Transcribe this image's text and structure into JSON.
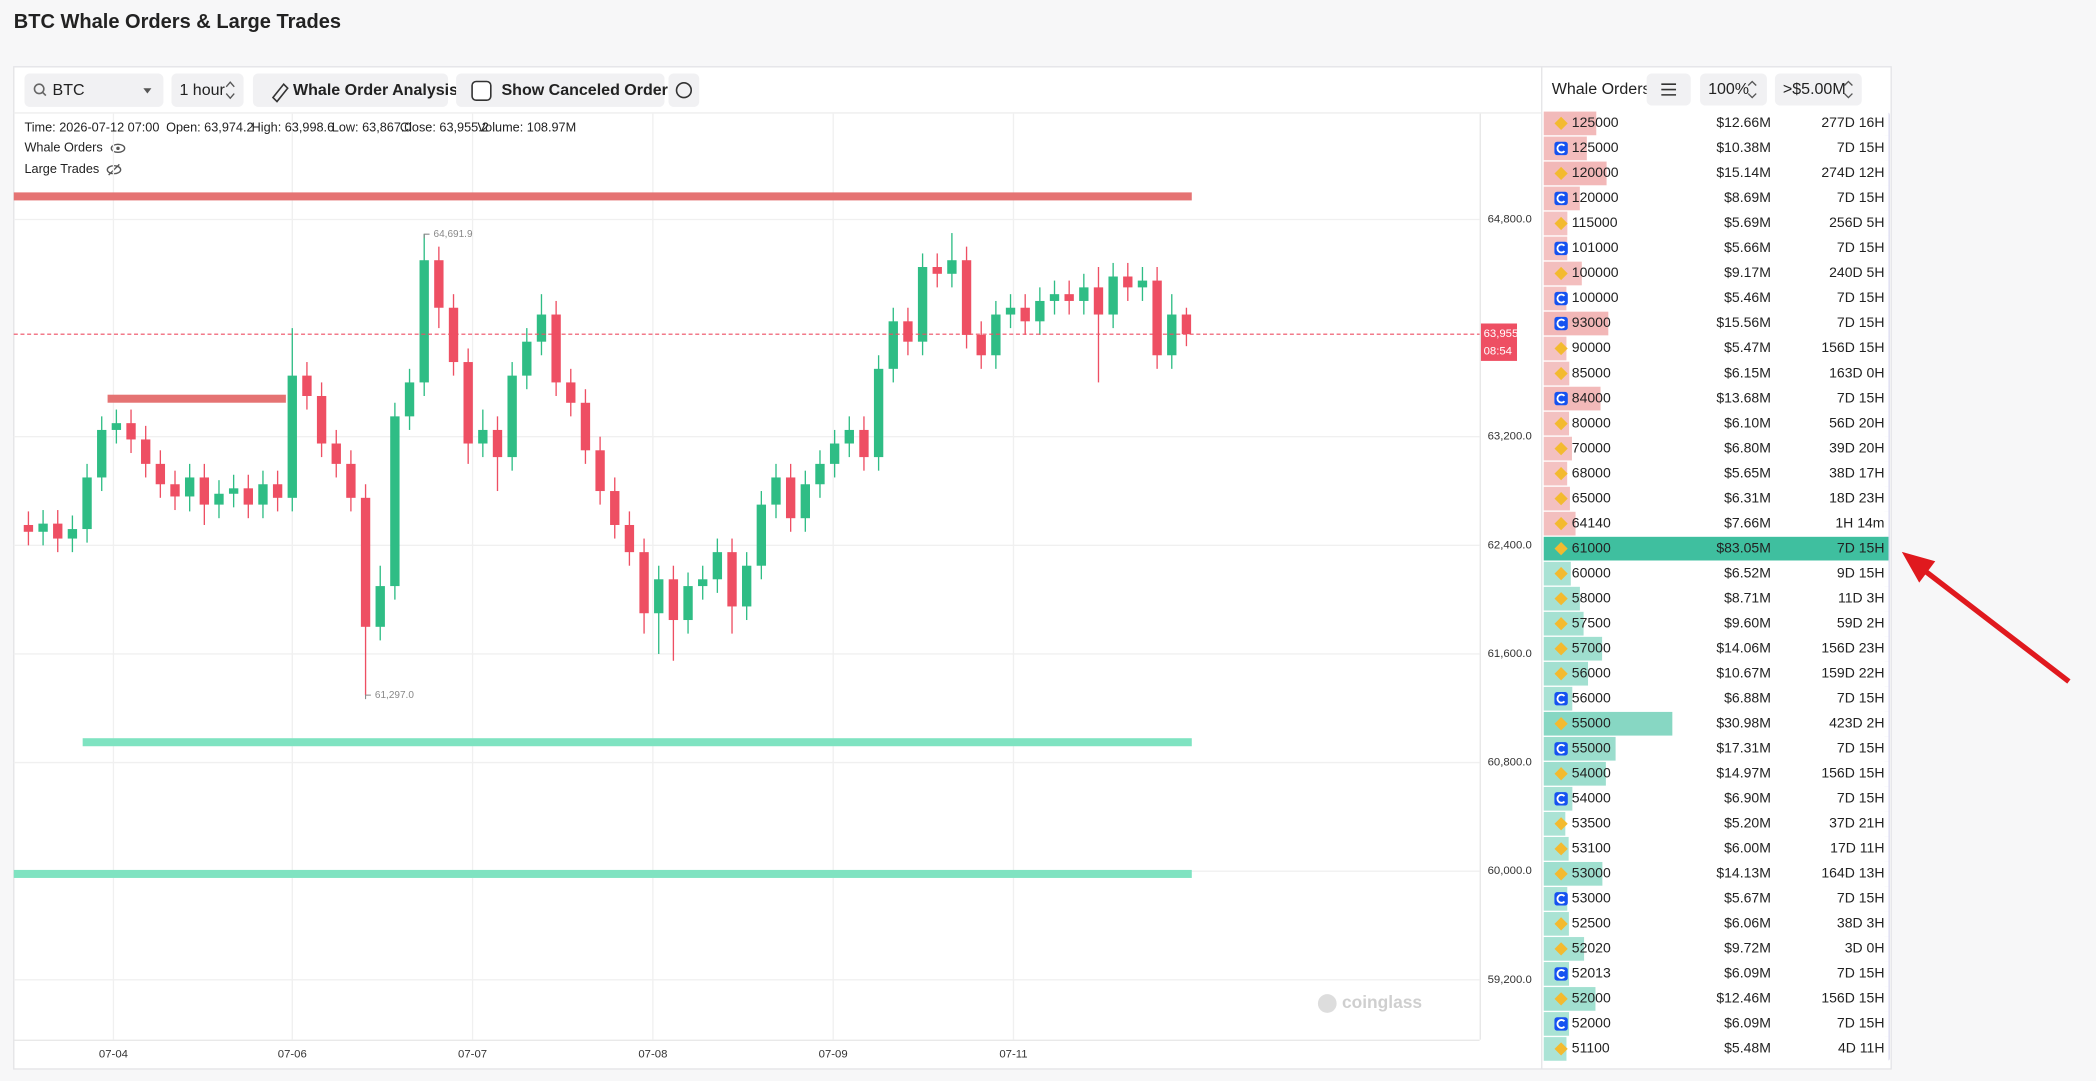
{
  "title": "BTC Whale Orders & Large Trades",
  "toolbar": {
    "symbol": "BTC",
    "interval": "1 hour",
    "analysis_button": "Whale Order Analysis",
    "canceled_toggle": "Show Canceled Orders"
  },
  "chart_data": {
    "type": "candlestick",
    "info": [
      "Time: 2026-07-12 07:00",
      "Open: 63,974.2",
      "High: 63,998.6",
      "Low: 63,867.0",
      "Close: 63,955.2",
      "Volume: 108.97M"
    ],
    "legend": [
      "Whale Orders",
      "Large Trades"
    ],
    "up_color": "#2fbd85",
    "down_color": "#ee4f63",
    "xlim": [
      -1,
      99
    ],
    "xticks": [
      {
        "value": 5.8,
        "label": "07-04"
      },
      {
        "value": 18,
        "label": "07-06"
      },
      {
        "value": 30.3,
        "label": "07-07"
      },
      {
        "value": 42.6,
        "label": "07-08"
      },
      {
        "value": 54.9,
        "label": "07-09"
      },
      {
        "value": 67.2,
        "label": "07-11"
      }
    ],
    "ylim": [
      58760,
      65580
    ],
    "yticks": [
      {
        "value": 64800,
        "label": "64,800.0"
      },
      {
        "value": 63200,
        "label": "63,200.0"
      },
      {
        "value": 62400,
        "label": "62,400.0"
      },
      {
        "value": 61600,
        "label": "61,600.0"
      },
      {
        "value": 60800,
        "label": "60,800.0"
      },
      {
        "value": 60000,
        "label": "60,000.0"
      },
      {
        "value": 59200,
        "label": "59,200.0"
      }
    ],
    "grid": true,
    "open": [
      62550,
      62500,
      62560,
      62450,
      62520,
      62900,
      63250,
      63300,
      63180,
      63000,
      62850,
      62760,
      62900,
      62700,
      62780,
      62820,
      62700,
      62850,
      62750,
      63650,
      63500,
      63150,
      63000,
      62750,
      61800,
      62100,
      63350,
      63600,
      64500,
      64150,
      63750,
      63150,
      63250,
      63050,
      63650,
      63900,
      64100,
      63600,
      63450,
      63100,
      62800,
      62550,
      62350,
      61900,
      62150,
      61850,
      62100,
      62150,
      62350,
      61950,
      62250,
      62700,
      62900,
      62600,
      62850,
      63000,
      63150,
      63250,
      63050,
      63700,
      64050,
      63900,
      64450,
      64400,
      64500,
      63950,
      63800,
      64100,
      64150,
      64050,
      64200,
      64250,
      64200,
      64300,
      64100,
      64380,
      64300,
      64350,
      63800,
      64100
    ],
    "high": [
      62650,
      62660,
      62660,
      62620,
      63000,
      63350,
      63400,
      63400,
      63280,
      63100,
      62950,
      63000,
      63000,
      62880,
      62920,
      62920,
      62950,
      62950,
      64000,
      63750,
      63600,
      63250,
      63100,
      62850,
      62250,
      63450,
      63700,
      64691.9,
      64600,
      64250,
      63850,
      63400,
      63350,
      63750,
      64000,
      64250,
      64200,
      63700,
      63550,
      63200,
      62900,
      62650,
      62450,
      62250,
      62250,
      62200,
      62250,
      62450,
      62450,
      62350,
      62800,
      63000,
      63000,
      62950,
      63100,
      63250,
      63350,
      63350,
      63800,
      64150,
      64150,
      64550,
      64550,
      64700,
      64600,
      64050,
      64200,
      64250,
      64250,
      64300,
      64350,
      64350,
      64400,
      64450,
      64480,
      64480,
      64450,
      64450,
      64250,
      64150
    ],
    "low": [
      62400,
      62400,
      62350,
      62350,
      62420,
      62800,
      63150,
      63080,
      62900,
      62750,
      62660,
      62650,
      62550,
      62600,
      62680,
      62600,
      62600,
      62650,
      62650,
      63400,
      63050,
      62900,
      62650,
      61297,
      61700,
      62000,
      63250,
      63500,
      64000,
      63650,
      63000,
      63050,
      62800,
      62950,
      63550,
      63800,
      63500,
      63350,
      63000,
      62700,
      62450,
      62250,
      61750,
      61600,
      61550,
      61750,
      62000,
      62050,
      61750,
      61850,
      62150,
      62600,
      62500,
      62500,
      62750,
      62900,
      63050,
      62950,
      62950,
      63600,
      63800,
      63800,
      64300,
      64300,
      63850,
      63700,
      63700,
      64000,
      63950,
      63950,
      64100,
      64100,
      64100,
      63600,
      64000,
      64200,
      64200,
      63700,
      63700,
      63867
    ],
    "close": [
      62500,
      62560,
      62450,
      62520,
      62900,
      63250,
      63300,
      63180,
      63000,
      62850,
      62760,
      62900,
      62700,
      62780,
      62820,
      62700,
      62850,
      62750,
      63650,
      63500,
      63150,
      63000,
      62750,
      61800,
      62100,
      63350,
      63600,
      64500,
      64150,
      63750,
      63150,
      63250,
      63050,
      63650,
      63900,
      64100,
      63600,
      63450,
      63100,
      62800,
      62550,
      62350,
      61900,
      62150,
      61850,
      62100,
      62150,
      62350,
      61950,
      62250,
      62700,
      62900,
      62600,
      62850,
      63000,
      63150,
      63250,
      63050,
      63700,
      64050,
      63900,
      64450,
      64400,
      64500,
      63950,
      63800,
      64100,
      64150,
      64050,
      64200,
      64250,
      64200,
      64300,
      64100,
      64380,
      64300,
      64350,
      63800,
      64100,
      63955.2
    ],
    "levels": [
      {
        "price": 64970,
        "from": -1,
        "to": 79,
        "color": "#e57373"
      },
      {
        "price": 63480,
        "from": 5.4,
        "to": 17.2,
        "color": "#e57373"
      },
      {
        "price": 60950,
        "from": 3.7,
        "to": 79,
        "color": "#7fe3c1"
      },
      {
        "price": 59980,
        "from": -1,
        "to": 79,
        "color": "#7fe3c1"
      }
    ],
    "annotations": [
      {
        "x": 27,
        "value": 64691.9,
        "label": "64,691.9"
      },
      {
        "x": 23,
        "value": 61297,
        "label": "61,297.0"
      }
    ],
    "last_price": {
      "value": 63955.2,
      "label": "63,955.2"
    },
    "countdown": "08:54",
    "watermark": "coinglass"
  },
  "whale_orders": {
    "title": "Whale Orders",
    "percent": "100%",
    "min_size": ">$5.00M",
    "ask_color": "#e57373",
    "bid_color": "#3fbf9f",
    "asks": [
      {
        "price": 125000,
        "icon": "binance",
        "amount": {
          "value": 12660000,
          "label": "$12.66M"
        },
        "age": "277D 16H"
      },
      {
        "price": 125000,
        "icon": "coinbase",
        "amount": {
          "value": 10380000,
          "label": "$10.38M"
        },
        "age": "7D 15H"
      },
      {
        "price": 120000,
        "icon": "binance",
        "amount": {
          "value": 15140000,
          "label": "$15.14M"
        },
        "age": "274D 12H"
      },
      {
        "price": 120000,
        "icon": "coinbase",
        "amount": {
          "value": 8690000,
          "label": "$8.69M"
        },
        "age": "7D 15H"
      },
      {
        "price": 115000,
        "icon": "binance",
        "amount": {
          "value": 5690000,
          "label": "$5.69M"
        },
        "age": "256D 5H"
      },
      {
        "price": 101000,
        "icon": "coinbase",
        "amount": {
          "value": 5660000,
          "label": "$5.66M"
        },
        "age": "7D 15H"
      },
      {
        "price": 100000,
        "icon": "binance",
        "amount": {
          "value": 9170000,
          "label": "$9.17M"
        },
        "age": "240D 5H"
      },
      {
        "price": 100000,
        "icon": "coinbase",
        "amount": {
          "value": 5460000,
          "label": "$5.46M"
        },
        "age": "7D 15H"
      },
      {
        "price": 93000,
        "icon": "coinbase",
        "amount": {
          "value": 15560000,
          "label": "$15.56M"
        },
        "age": "7D 15H"
      },
      {
        "price": 90000,
        "icon": "binance",
        "amount": {
          "value": 5470000,
          "label": "$5.47M"
        },
        "age": "156D 15H"
      },
      {
        "price": 85000,
        "icon": "binance",
        "amount": {
          "value": 6150000,
          "label": "$6.15M"
        },
        "age": "163D 0H"
      },
      {
        "price": 84000,
        "icon": "coinbase",
        "amount": {
          "value": 13680000,
          "label": "$13.68M"
        },
        "age": "7D 15H"
      },
      {
        "price": 80000,
        "icon": "binance",
        "amount": {
          "value": 6100000,
          "label": "$6.10M"
        },
        "age": "56D 20H"
      },
      {
        "price": 70000,
        "icon": "binance",
        "amount": {
          "value": 6800000,
          "label": "$6.80M"
        },
        "age": "39D 20H"
      },
      {
        "price": 68000,
        "icon": "binance",
        "amount": {
          "value": 5650000,
          "label": "$5.65M"
        },
        "age": "38D 17H"
      },
      {
        "price": 65000,
        "icon": "binance",
        "amount": {
          "value": 6310000,
          "label": "$6.31M"
        },
        "age": "18D 23H"
      },
      {
        "price": 64140,
        "icon": "binance",
        "amount": {
          "value": 7660000,
          "label": "$7.66M"
        },
        "age": "1H 14m"
      }
    ],
    "bids": [
      {
        "price": 61000,
        "icon": "binance",
        "amount": {
          "value": 83050000,
          "label": "$83.05M"
        },
        "age": "7D 15H"
      },
      {
        "price": 60000,
        "icon": "binance",
        "amount": {
          "value": 6520000,
          "label": "$6.52M"
        },
        "age": "9D 15H"
      },
      {
        "price": 58000,
        "icon": "binance",
        "amount": {
          "value": 8710000,
          "label": "$8.71M"
        },
        "age": "11D 3H"
      },
      {
        "price": 57500,
        "icon": "binance",
        "amount": {
          "value": 9600000,
          "label": "$9.60M"
        },
        "age": "59D 2H"
      },
      {
        "price": 57000,
        "icon": "binance",
        "amount": {
          "value": 14060000,
          "label": "$14.06M"
        },
        "age": "156D 23H"
      },
      {
        "price": 56000,
        "icon": "binance",
        "amount": {
          "value": 10670000,
          "label": "$10.67M"
        },
        "age": "159D 22H"
      },
      {
        "price": 56000,
        "icon": "coinbase",
        "amount": {
          "value": 6880000,
          "label": "$6.88M"
        },
        "age": "7D 15H"
      },
      {
        "price": 55000,
        "icon": "binance",
        "amount": {
          "value": 30980000,
          "label": "$30.98M"
        },
        "age": "423D 2H"
      },
      {
        "price": 55000,
        "icon": "coinbase",
        "amount": {
          "value": 17310000,
          "label": "$17.31M"
        },
        "age": "7D 15H"
      },
      {
        "price": 54000,
        "icon": "binance",
        "amount": {
          "value": 14970000,
          "label": "$14.97M"
        },
        "age": "156D 15H"
      },
      {
        "price": 54000,
        "icon": "coinbase",
        "amount": {
          "value": 6900000,
          "label": "$6.90M"
        },
        "age": "7D 15H"
      },
      {
        "price": 53500,
        "icon": "binance",
        "amount": {
          "value": 5200000,
          "label": "$5.20M"
        },
        "age": "37D 21H"
      },
      {
        "price": 53100,
        "icon": "binance",
        "amount": {
          "value": 6000000,
          "label": "$6.00M"
        },
        "age": "17D 11H"
      },
      {
        "price": 53000,
        "icon": "binance",
        "amount": {
          "value": 14130000,
          "label": "$14.13M"
        },
        "age": "164D 13H"
      },
      {
        "price": 53000,
        "icon": "coinbase",
        "amount": {
          "value": 5670000,
          "label": "$5.67M"
        },
        "age": "7D 15H"
      },
      {
        "price": 52500,
        "icon": "binance",
        "amount": {
          "value": 6060000,
          "label": "$6.06M"
        },
        "age": "38D 3H"
      },
      {
        "price": 52020,
        "icon": "binance",
        "amount": {
          "value": 9720000,
          "label": "$9.72M"
        },
        "age": "3D 0H"
      },
      {
        "price": 52013,
        "icon": "coinbase",
        "amount": {
          "value": 6090000,
          "label": "$6.09M"
        },
        "age": "7D 15H"
      },
      {
        "price": 52000,
        "icon": "binance",
        "amount": {
          "value": 12460000,
          "label": "$12.46M"
        },
        "age": "156D 15H"
      },
      {
        "price": 52000,
        "icon": "coinbase",
        "amount": {
          "value": 6090000,
          "label": "$6.09M"
        },
        "age": "7D 15H"
      },
      {
        "price": 51100,
        "icon": "binance",
        "amount": {
          "value": 5480000,
          "label": "$5.48M"
        },
        "age": "4D 11H"
      }
    ]
  }
}
